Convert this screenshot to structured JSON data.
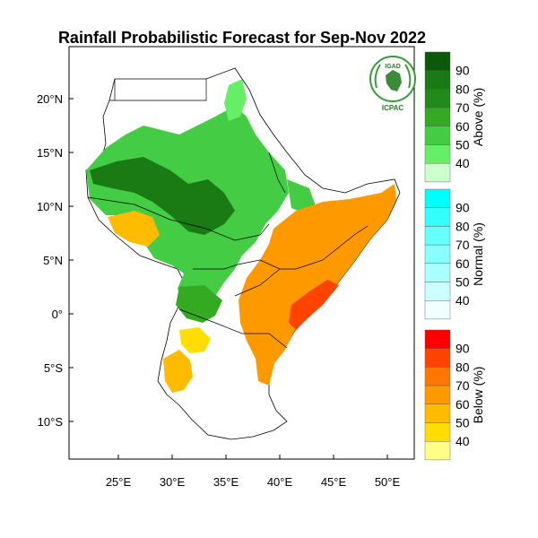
{
  "title": "Rainfall Probabilistic Forecast for Sep-Nov 2022",
  "logo": {
    "top_text": "IGAD",
    "bottom_text": "ICPAC",
    "icon": "igad-emblem-icon"
  },
  "axes": {
    "lat_labels": [
      "20°N",
      "15°N",
      "10°N",
      "5°N",
      "0°",
      "5°S",
      "10°S"
    ],
    "lon_labels": [
      "25°E",
      "30°E",
      "35°E",
      "40°E",
      "45°E",
      "50°E"
    ]
  },
  "colors": {
    "above": [
      "#ccffcc",
      "#66ee66",
      "#44cc44",
      "#33aa22",
      "#228a1a",
      "#1a7a14",
      "#0a5a0a"
    ],
    "normal": [
      "#f0ffff",
      "#ccffff",
      "#aaffff",
      "#88ffff",
      "#66ffff",
      "#33ffff",
      "#00ffff"
    ],
    "below": [
      "#ffff88",
      "#ffdd00",
      "#ffbb00",
      "#ff9900",
      "#ff7700",
      "#ff4400",
      "#ff0000"
    ]
  },
  "legend": [
    {
      "category": "Above (%)",
      "levels": [
        "90",
        "80",
        "70",
        "60",
        "50",
        "40"
      ]
    },
    {
      "category": "Normal (%)",
      "levels": [
        "90",
        "80",
        "70",
        "60",
        "50",
        "40"
      ]
    },
    {
      "category": "Below (%)",
      "levels": [
        "90",
        "80",
        "70",
        "60",
        "50",
        "40"
      ]
    }
  ]
}
